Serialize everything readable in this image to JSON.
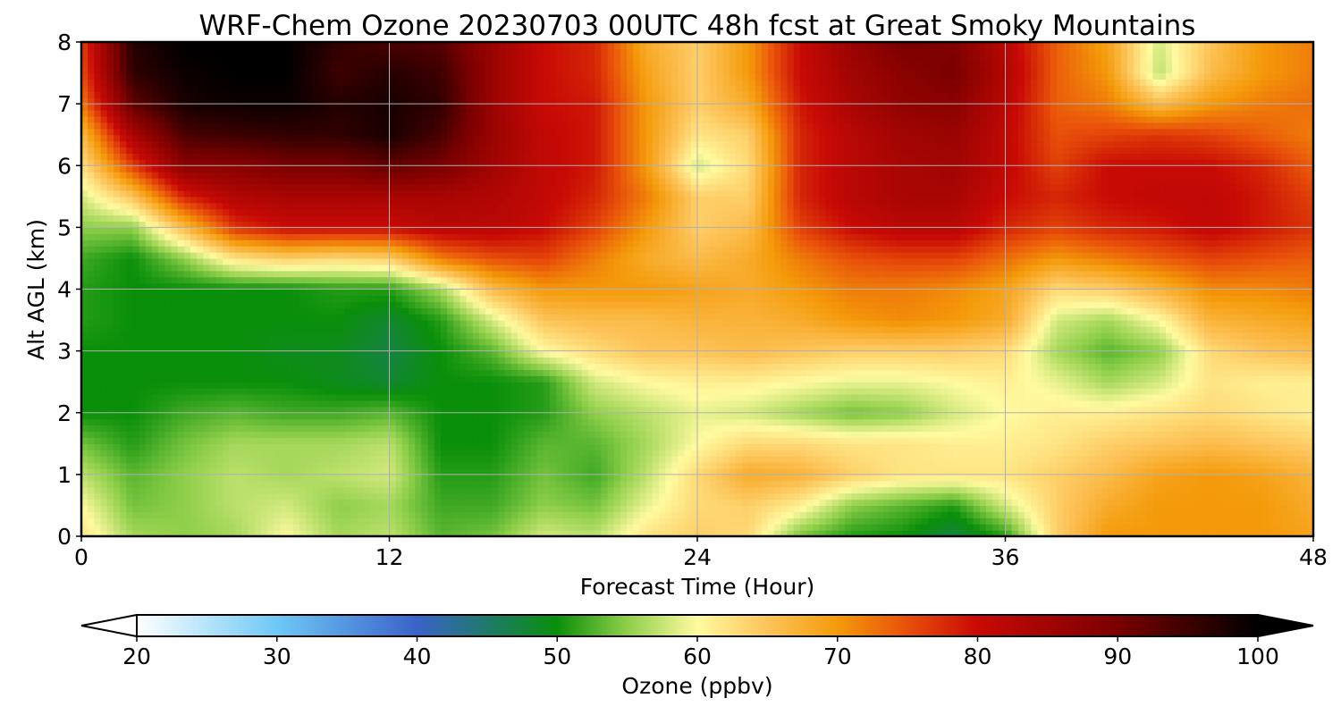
{
  "chart_data": {
    "type": "heatmap",
    "title": "WRF-Chem Ozone  20230703 00UTC 48h fcst at Great Smoky Mountains",
    "xlabel": "Forecast Time (Hour)",
    "ylabel": "Alt AGL (km)",
    "xlim": [
      0,
      48
    ],
    "ylim": [
      0,
      8
    ],
    "xticks": [
      "0",
      "12",
      "24",
      "36",
      "48"
    ],
    "yticks": [
      "0",
      "1",
      "2",
      "3",
      "4",
      "5",
      "6",
      "7",
      "8"
    ],
    "grid": true,
    "colorbar": {
      "label": "Ozone  (ppbv)",
      "min": 20,
      "max": 100,
      "ticks": [
        "20",
        "30",
        "40",
        "50",
        "60",
        "70",
        "80",
        "90",
        "100"
      ],
      "extend": "both",
      "stops": [
        {
          "v": 20,
          "c": "#ffffff"
        },
        {
          "v": 30,
          "c": "#6ec8f5"
        },
        {
          "v": 40,
          "c": "#3a62c9"
        },
        {
          "v": 45,
          "c": "#1f7a6a"
        },
        {
          "v": 50,
          "c": "#0a8f0a"
        },
        {
          "v": 55,
          "c": "#8fcf4a"
        },
        {
          "v": 60,
          "c": "#fffaa0"
        },
        {
          "v": 65,
          "c": "#fdc45a"
        },
        {
          "v": 70,
          "c": "#f49a0a"
        },
        {
          "v": 75,
          "c": "#e8500a"
        },
        {
          "v": 80,
          "c": "#c80a05"
        },
        {
          "v": 90,
          "c": "#7a0000"
        },
        {
          "v": 100,
          "c": "#000000"
        }
      ]
    },
    "times": [
      0,
      2,
      4,
      6,
      8,
      10,
      12,
      14,
      16,
      18,
      20,
      22,
      24,
      26,
      28,
      30,
      32,
      34,
      36,
      38,
      40,
      42,
      44,
      46,
      48
    ],
    "altitudes": [
      0,
      0.5,
      1,
      1.5,
      2,
      2.5,
      3,
      3.5,
      4,
      4.5,
      5,
      5.5,
      6,
      6.5,
      7,
      7.5,
      8
    ],
    "values": [
      [
        62,
        56,
        55,
        56,
        60,
        56,
        57,
        53,
        54,
        58,
        57,
        62,
        64,
        63,
        54,
        51,
        50,
        47,
        51,
        64,
        70,
        70,
        70,
        70,
        69
      ],
      [
        60,
        54,
        55,
        57,
        58,
        55,
        56,
        52,
        52,
        55,
        54,
        59,
        63,
        64,
        61,
        55,
        53,
        51,
        58,
        64,
        68,
        70,
        70,
        70,
        68
      ],
      [
        57,
        53,
        55,
        57,
        56,
        57,
        58,
        51,
        51,
        54,
        52,
        57,
        63,
        68,
        67,
        64,
        62,
        62,
        62,
        64,
        66,
        69,
        70,
        69,
        67
      ],
      [
        54,
        51,
        54,
        56,
        56,
        56,
        57,
        50,
        50,
        53,
        53,
        56,
        60,
        63,
        63,
        62,
        62,
        61,
        61,
        62,
        64,
        65,
        66,
        65,
        64
      ],
      [
        50,
        50,
        52,
        53,
        52,
        52,
        53,
        50,
        50,
        51,
        55,
        57,
        59,
        58,
        56,
        54,
        55,
        58,
        60,
        61,
        61,
        62,
        63,
        62,
        61
      ],
      [
        50,
        50,
        50,
        50,
        50,
        49,
        48,
        50,
        50,
        51,
        58,
        60,
        61,
        61,
        60,
        59,
        59,
        60,
        61,
        59,
        56,
        58,
        62,
        61,
        61
      ],
      [
        50,
        50,
        50,
        50,
        49,
        49,
        47,
        50,
        53,
        60,
        63,
        65,
        65,
        66,
        65,
        64,
        64,
        64,
        63,
        56,
        53,
        55,
        63,
        65,
        66
      ],
      [
        51,
        50,
        50,
        50,
        50,
        50,
        48,
        51,
        58,
        65,
        66,
        66,
        67,
        67,
        68,
        70,
        71,
        70,
        68,
        58,
        56,
        60,
        67,
        68,
        69
      ],
      [
        51,
        50,
        50,
        50,
        50,
        51,
        51,
        56,
        66,
        70,
        70,
        70,
        69,
        68,
        70,
        72,
        72,
        71,
        69,
        63,
        64,
        67,
        71,
        71,
        72
      ],
      [
        52,
        50,
        55,
        62,
        64,
        63,
        64,
        72,
        75,
        76,
        72,
        68,
        66,
        68,
        72,
        75,
        76,
        76,
        73,
        70,
        72,
        74,
        76,
        75,
        74
      ],
      [
        55,
        55,
        66,
        77,
        80,
        80,
        80,
        82,
        82,
        80,
        76,
        70,
        64,
        66,
        76,
        80,
        82,
        82,
        78,
        76,
        78,
        79,
        81,
        79,
        77
      ],
      [
        58,
        65,
        78,
        83,
        84,
        84,
        84,
        84,
        83,
        81,
        78,
        72,
        64,
        64,
        78,
        82,
        84,
        84,
        80,
        78,
        80,
        81,
        81,
        79,
        76
      ],
      [
        62,
        76,
        88,
        88,
        90,
        90,
        92,
        90,
        85,
        81,
        79,
        70,
        58,
        63,
        78,
        82,
        84,
        85,
        81,
        76,
        80,
        80,
        80,
        78,
        74
      ],
      [
        66,
        84,
        94,
        95,
        96,
        96,
        98,
        94,
        86,
        81,
        79,
        70,
        62,
        64,
        78,
        82,
        85,
        86,
        81,
        75,
        76,
        77,
        76,
        74,
        72
      ],
      [
        72,
        92,
        98,
        99,
        99,
        97,
        98,
        96,
        86,
        80,
        79,
        70,
        64,
        68,
        79,
        84,
        87,
        88,
        82,
        74,
        72,
        66,
        70,
        72,
        73
      ],
      [
        75,
        96,
        99,
        100,
        100,
        95,
        97,
        95,
        86,
        80,
        78,
        69,
        64,
        70,
        80,
        85,
        88,
        90,
        83,
        74,
        70,
        57,
        66,
        70,
        72
      ],
      [
        76,
        97,
        100,
        100,
        100,
        96,
        94,
        93,
        86,
        80,
        78,
        68,
        64,
        70,
        80,
        86,
        90,
        89,
        82,
        74,
        69,
        58,
        65,
        70,
        72
      ]
    ]
  }
}
